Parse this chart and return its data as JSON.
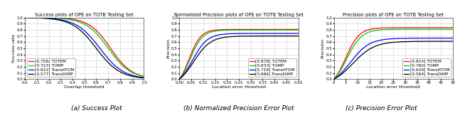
{
  "plots": [
    {
      "title": "Success plots of OPE on TOTB Testing Set",
      "xlabel": "Overlap threshold",
      "ylabel": "Success rate",
      "xlim": [
        0,
        1
      ],
      "ylim": [
        0,
        1
      ],
      "xticks": [
        0.0,
        0.1,
        0.2,
        0.3,
        0.4,
        0.5,
        0.6,
        0.7,
        0.8,
        0.9,
        1.0
      ],
      "yticks": [
        0.0,
        0.1,
        0.2,
        0.3,
        0.4,
        0.5,
        0.6,
        0.7,
        0.8,
        0.9,
        1.0
      ],
      "caption": "(a) Success Plot",
      "legend_loc": "lower left",
      "curves": [
        {
          "label": "[0.756] TOTEM",
          "color": "#ff0000",
          "auc": 0.756,
          "type": "success",
          "slope": 11.0,
          "mid": 0.72
        },
        {
          "label": "[0.723] TOMP",
          "color": "#00cc00",
          "auc": 0.723,
          "type": "success",
          "slope": 10.5,
          "mid": 0.7
        },
        {
          "label": "[0.622] TransATOM",
          "color": "#0000ff",
          "auc": 0.622,
          "type": "success",
          "slope": 10.0,
          "mid": 0.63
        },
        {
          "label": "[0.577] TransDiMP",
          "color": "#000000",
          "auc": 0.577,
          "type": "success",
          "slope": 10.0,
          "mid": 0.6
        }
      ]
    },
    {
      "title": "Normalized Precision plots of OPE on TOTB Testing Set",
      "xlabel": "Location error threshold",
      "ylabel": "Precision",
      "xlim": [
        0,
        0.5
      ],
      "ylim": [
        0,
        1
      ],
      "xticks": [
        0.0,
        0.05,
        0.1,
        0.15,
        0.2,
        0.25,
        0.3,
        0.35,
        0.4,
        0.45,
        0.5
      ],
      "yticks": [
        0.0,
        0.1,
        0.2,
        0.3,
        0.4,
        0.5,
        0.6,
        0.7,
        0.8,
        0.9,
        1.0
      ],
      "caption": "(b) Normalized Precision Error Plot",
      "legend_loc": "lower right",
      "curves": [
        {
          "label": "[0.878] TOTEM",
          "color": "#ff0000",
          "auc": 0.878,
          "type": "norm_prec",
          "slope": 40.0,
          "mid": 0.04
        },
        {
          "label": "[0.833] TOMP",
          "color": "#00cc00",
          "auc": 0.833,
          "type": "norm_prec",
          "slope": 38.0,
          "mid": 0.045
        },
        {
          "label": "[0.719] TransATOM",
          "color": "#0000ff",
          "auc": 0.719,
          "type": "norm_prec",
          "slope": 32.0,
          "mid": 0.055
        },
        {
          "label": "[0.666] TransDiMP",
          "color": "#000000",
          "auc": 0.666,
          "type": "norm_prec",
          "slope": 28.0,
          "mid": 0.06
        }
      ]
    },
    {
      "title": "Precision plots of OPE on TOTB Testing Set",
      "xlabel": "Location error threshold",
      "ylabel": "Precision",
      "xlim": [
        0,
        50
      ],
      "ylim": [
        0,
        1
      ],
      "xticks": [
        0,
        5,
        10,
        15,
        20,
        25,
        30,
        35,
        40,
        45,
        50
      ],
      "yticks": [
        0.0,
        0.1,
        0.2,
        0.3,
        0.4,
        0.5,
        0.6,
        0.7,
        0.8,
        0.9,
        1.0
      ],
      "caption": "(c) Precision Error Plot",
      "legend_loc": "lower right",
      "curves": [
        {
          "label": "[0.814] TOTEM",
          "color": "#ff0000",
          "auc": 0.814,
          "type": "prec",
          "slope": 0.35,
          "mid": 5.0
        },
        {
          "label": "[0.760] TOMP",
          "color": "#00cc00",
          "auc": 0.76,
          "type": "prec",
          "slope": 0.32,
          "mid": 5.5
        },
        {
          "label": "[0.629] TransATOM",
          "color": "#0000ff",
          "auc": 0.629,
          "type": "prec",
          "slope": 0.25,
          "mid": 7.0
        },
        {
          "label": "[0.564] TransDiMP",
          "color": "#000000",
          "auc": 0.564,
          "type": "prec",
          "slope": 0.22,
          "mid": 8.0
        }
      ]
    }
  ],
  "background_color": "#ffffff",
  "grid_color": "#cccccc",
  "linewidth": 0.9,
  "title_fontsize": 4.8,
  "axis_label_fontsize": 4.5,
  "tick_fontsize": 4.0,
  "legend_fontsize": 4.2,
  "caption_fontsize": 6.5
}
